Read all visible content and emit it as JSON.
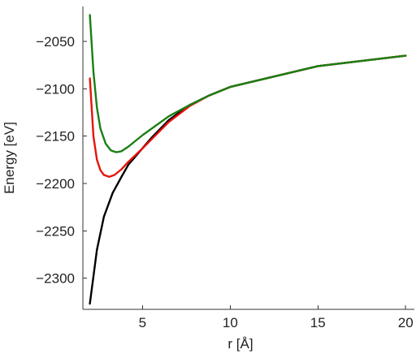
{
  "chart_data": {
    "type": "line",
    "title": "",
    "xlabel": "r [Å]",
    "ylabel": "Energy [eV]",
    "xlim": [
      1.6,
      20.5
    ],
    "ylim": [
      -2333,
      -2013
    ],
    "xticks": [
      5,
      10,
      15,
      20
    ],
    "yticks": [
      -2050,
      -2100,
      -2150,
      -2200,
      -2250,
      -2300
    ],
    "ytick_labels": [
      "−2050",
      "−2100",
      "−2150",
      "−2200",
      "−2250",
      "−2300"
    ],
    "grid": false,
    "legend": "none",
    "series": [
      {
        "color": "#000000",
        "x": [
          2.0,
          2.4,
          2.8,
          3.3,
          3.8,
          4.2,
          5.5,
          6.5,
          7.7,
          8.8,
          10.0,
          15.0,
          20.0
        ],
        "y": [
          -2327,
          -2270,
          -2235,
          -2210,
          -2193,
          -2180,
          -2152,
          -2133,
          -2117,
          -2107,
          -2098,
          -2076,
          -2065
        ]
      },
      {
        "color": "#e8120c",
        "x": [
          2.0,
          2.2,
          2.4,
          2.6,
          2.8,
          3.1,
          3.4,
          3.8,
          4.2,
          5.0,
          6.5,
          7.7,
          8.8,
          10.0,
          15.0,
          20.0
        ],
        "y": [
          -2089,
          -2150,
          -2175,
          -2186,
          -2191,
          -2193,
          -2191,
          -2185,
          -2177,
          -2163,
          -2135,
          -2118,
          -2107,
          -2098,
          -2076,
          -2065
        ]
      },
      {
        "color": "#1a7f12",
        "x": [
          2.0,
          2.2,
          2.4,
          2.6,
          2.9,
          3.2,
          3.5,
          3.8,
          4.2,
          5.0,
          6.5,
          7.7,
          8.8,
          10.0,
          15.0,
          20.0
        ],
        "y": [
          -2022,
          -2082,
          -2120,
          -2142,
          -2158,
          -2165,
          -2167,
          -2166,
          -2161,
          -2149,
          -2129,
          -2117,
          -2107,
          -2098,
          -2076,
          -2065
        ]
      }
    ]
  }
}
